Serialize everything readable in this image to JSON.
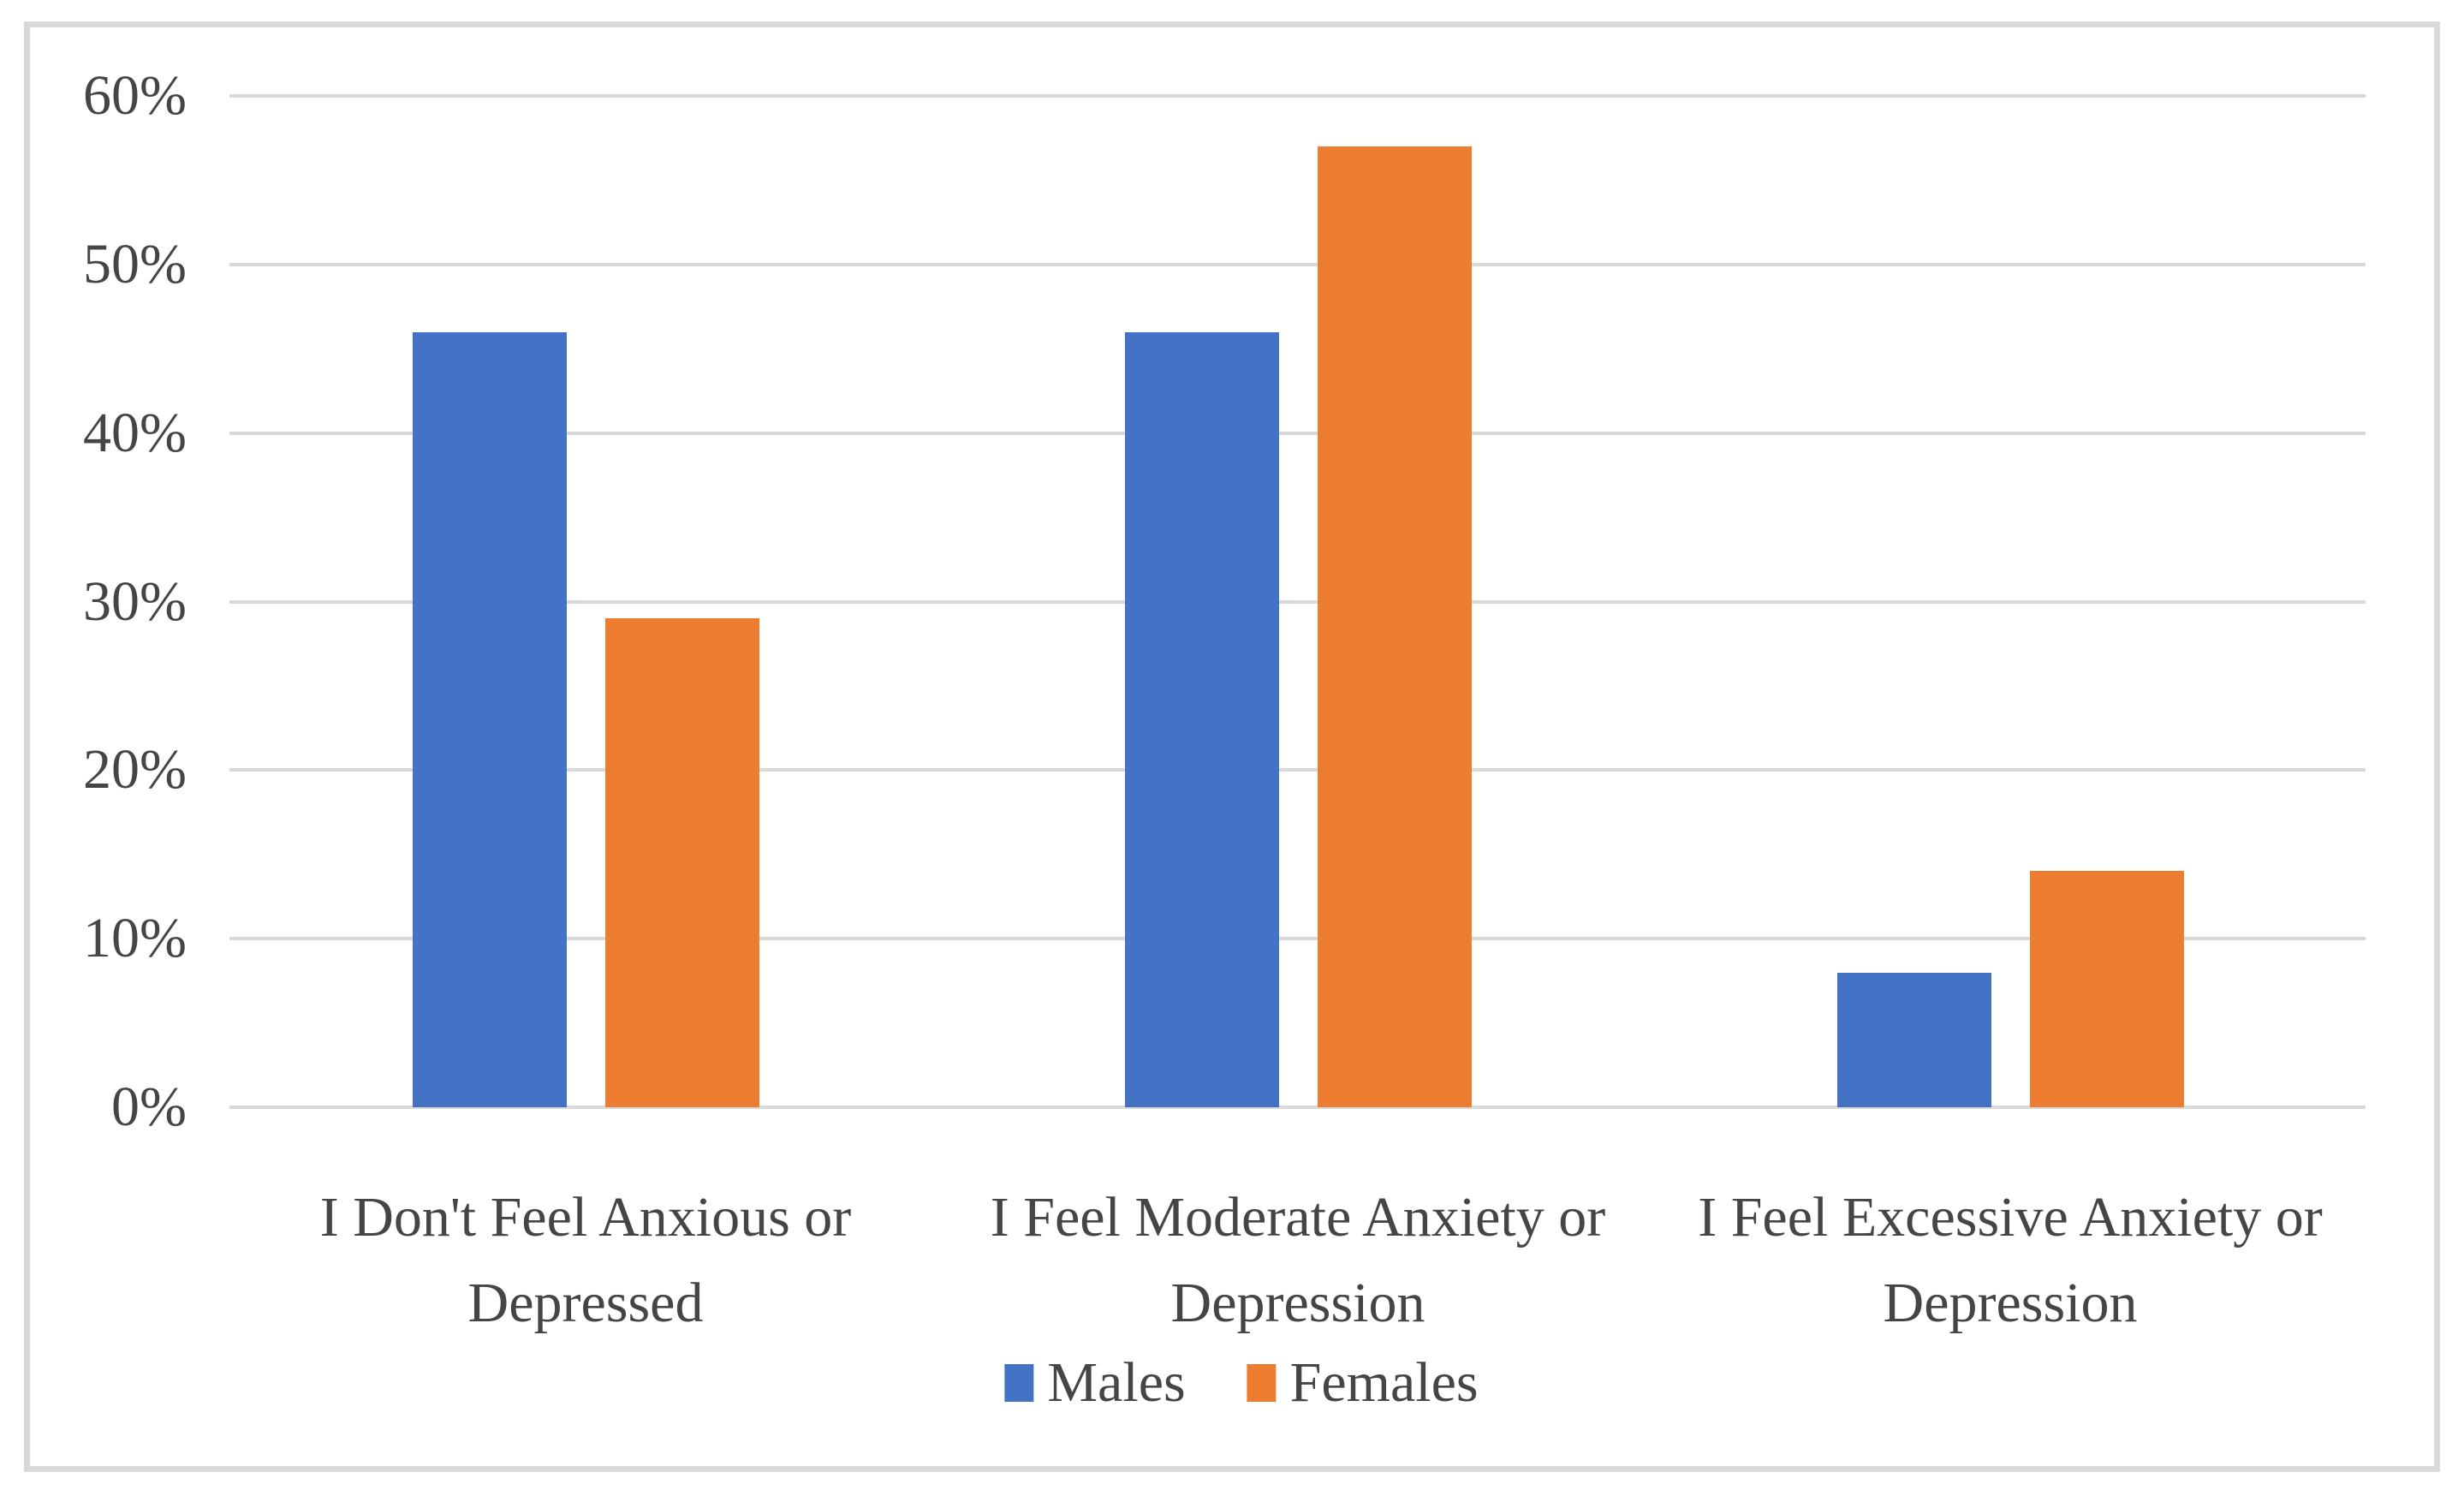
{
  "chart_data": {
    "type": "bar",
    "title": "",
    "categories": [
      "I Don't Feel Anxious or Depressed",
      "I Feel Moderate Anxiety or Depression",
      "I Feel Excessive Anxiety or Depression"
    ],
    "series": [
      {
        "name": "Males",
        "color": "#4472C4",
        "values_pct": [
          46,
          46,
          8
        ]
      },
      {
        "name": "Females",
        "color": "#ED7D31",
        "values_pct": [
          29,
          57,
          14
        ]
      }
    ],
    "y_axis": {
      "tick_labels": [
        "0%",
        "10%",
        "20%",
        "30%",
        "40%",
        "50%",
        "60%"
      ],
      "min": 0,
      "max": 60,
      "step": 10,
      "unit": "%"
    },
    "ylim": [
      0,
      60
    ],
    "grid": true,
    "legend_position": "bottom",
    "colors": {
      "gridline": "#D9D9D9",
      "frame_border": "#D9D9D9",
      "text": "#454545",
      "plot_background": "#FFFFFF"
    }
  }
}
